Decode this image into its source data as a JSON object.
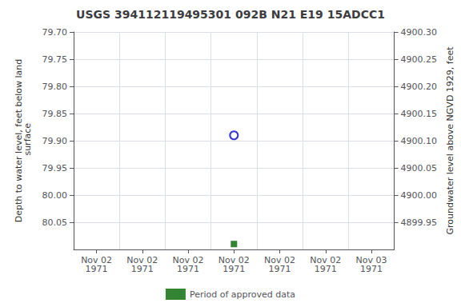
{
  "chart_data": {
    "type": "scatter",
    "title": "USGS 394112119495301 092B N21 E19 15ADCC1",
    "ylabel": "Depth to water level, feet below land\n surface",
    "y2label": "Groundwater level above NGVD 1929, feet",
    "categories": [
      "Nov 02\n1971",
      "Nov 02\n1971",
      "Nov 02\n1971",
      "Nov 02\n1971",
      "Nov 02\n1971",
      "Nov 02\n1971",
      "Nov 03\n1971"
    ],
    "series": [
      {
        "color": "#0000cc",
        "marker": "open_circle",
        "values": [
          null,
          null,
          null,
          79.89,
          null,
          null,
          null
        ]
      },
      {
        "name": "Period of approved data",
        "color": "#006600",
        "marker": "square",
        "values": [
          null,
          null,
          null,
          80.09,
          null,
          null,
          null
        ]
      }
    ],
    "ylim": [
      80.1,
      79.7
    ],
    "yticks": [
      {
        "value": 79.7,
        "label": "79.70"
      },
      {
        "value": 79.75,
        "label": "79.75"
      },
      {
        "value": 79.8,
        "label": "79.80"
      },
      {
        "value": 79.85,
        "label": "79.85"
      },
      {
        "value": 79.9,
        "label": "79.90"
      },
      {
        "value": 79.95,
        "label": "79.95"
      },
      {
        "value": 80.0,
        "label": "80.00"
      },
      {
        "value": 80.05,
        "label": "80.05"
      }
    ],
    "y2lim": [
      4899.9,
      4900.3
    ],
    "y2ticks": [
      {
        "value": 4900.3,
        "label": "4900.30"
      },
      {
        "value": 4900.25,
        "label": "4900.25"
      },
      {
        "value": 4900.2,
        "label": "4900.20"
      },
      {
        "value": 4900.15,
        "label": "4900.15"
      },
      {
        "value": 4900.1,
        "label": "4900.10"
      },
      {
        "value": 4900.05,
        "label": "4900.05"
      },
      {
        "value": 4900.0,
        "label": "4900.00"
      },
      {
        "value": 4899.95,
        "label": "4899.95"
      }
    ],
    "grid": true,
    "legend": "bottom"
  }
}
